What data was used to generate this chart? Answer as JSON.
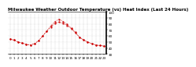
{
  "title": "Milwaukee Weather Outdoor Temperature (vs) Heat Index (Last 24 Hours)",
  "hours": [
    0,
    1,
    2,
    3,
    4,
    5,
    6,
    7,
    8,
    9,
    10,
    11,
    12,
    13,
    14,
    15,
    16,
    17,
    18,
    19,
    20,
    21,
    22,
    23
  ],
  "temp": [
    55,
    53,
    50,
    48,
    46,
    45,
    47,
    52,
    60,
    68,
    75,
    81,
    83,
    81,
    77,
    72,
    65,
    58,
    53,
    50,
    47,
    45,
    44,
    43
  ],
  "heat_index": [
    55,
    53,
    50,
    48,
    46,
    45,
    47,
    52,
    60,
    68,
    77,
    84,
    88,
    84,
    79,
    73,
    66,
    58,
    53,
    50,
    47,
    45,
    44,
    43
  ],
  "ylim": [
    30,
    100
  ],
  "xlim": [
    -0.5,
    23.5
  ],
  "yticks": [
    30,
    40,
    50,
    60,
    70,
    80,
    90,
    100
  ],
  "ytick_labels": [
    "30",
    "40",
    "50",
    "60",
    "70",
    "80",
    "90",
    "100"
  ],
  "bg_color": "#ffffff",
  "line_color": "#cc0000",
  "black_color": "#000000",
  "grid_color": "#999999",
  "title_fontsize": 4.0,
  "tick_fontsize": 3.0
}
